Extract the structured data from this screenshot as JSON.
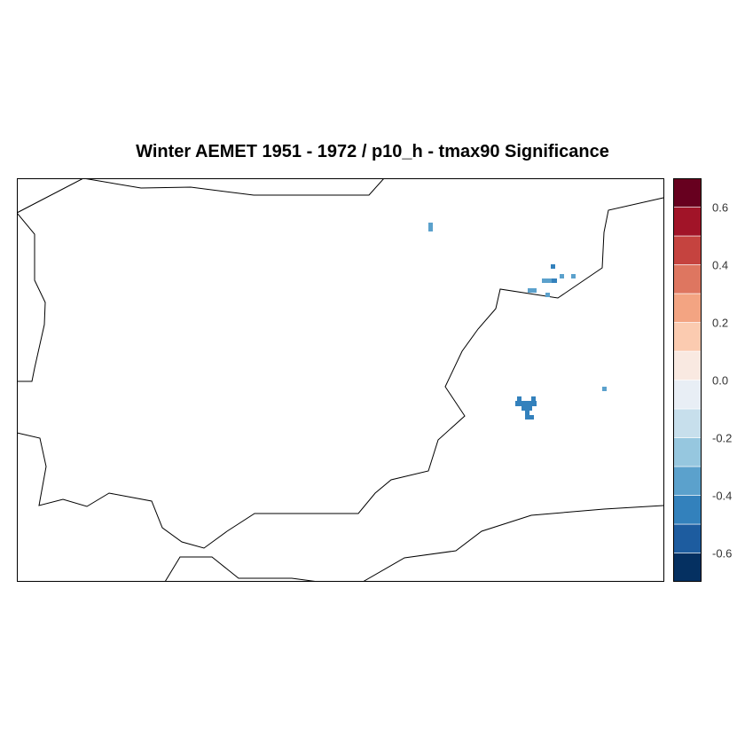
{
  "title": "Winter AEMET 1951 - 1972 / p10_h - tmax90 Significance",
  "colorbar": {
    "range": [
      -0.7,
      0.7
    ],
    "step": 0.1,
    "colors": [
      "#053061",
      "#1d5c9f",
      "#3381bc",
      "#5ba1cc",
      "#96c7df",
      "#c7dfec",
      "#e8eef5",
      "#f9e9e1",
      "#fbcbb0",
      "#f3a482",
      "#de7660",
      "#c5433f",
      "#a11428",
      "#67001f"
    ],
    "ticks": [
      {
        "value": -0.6,
        "label": "-0.6"
      },
      {
        "value": -0.4,
        "label": "-0.4"
      },
      {
        "value": -0.2,
        "label": "-0.2"
      },
      {
        "value": 0.0,
        "label": "0.0"
      },
      {
        "value": 0.2,
        "label": "0.2"
      },
      {
        "value": 0.4,
        "label": "0.4"
      },
      {
        "value": 0.6,
        "label": "0.6"
      }
    ]
  },
  "map": {
    "background": "#ffffff",
    "coastline_color": "#000000",
    "significant_cell_color_light": "#5ba1cc",
    "significant_cell_color_dark": "#3381bc"
  }
}
